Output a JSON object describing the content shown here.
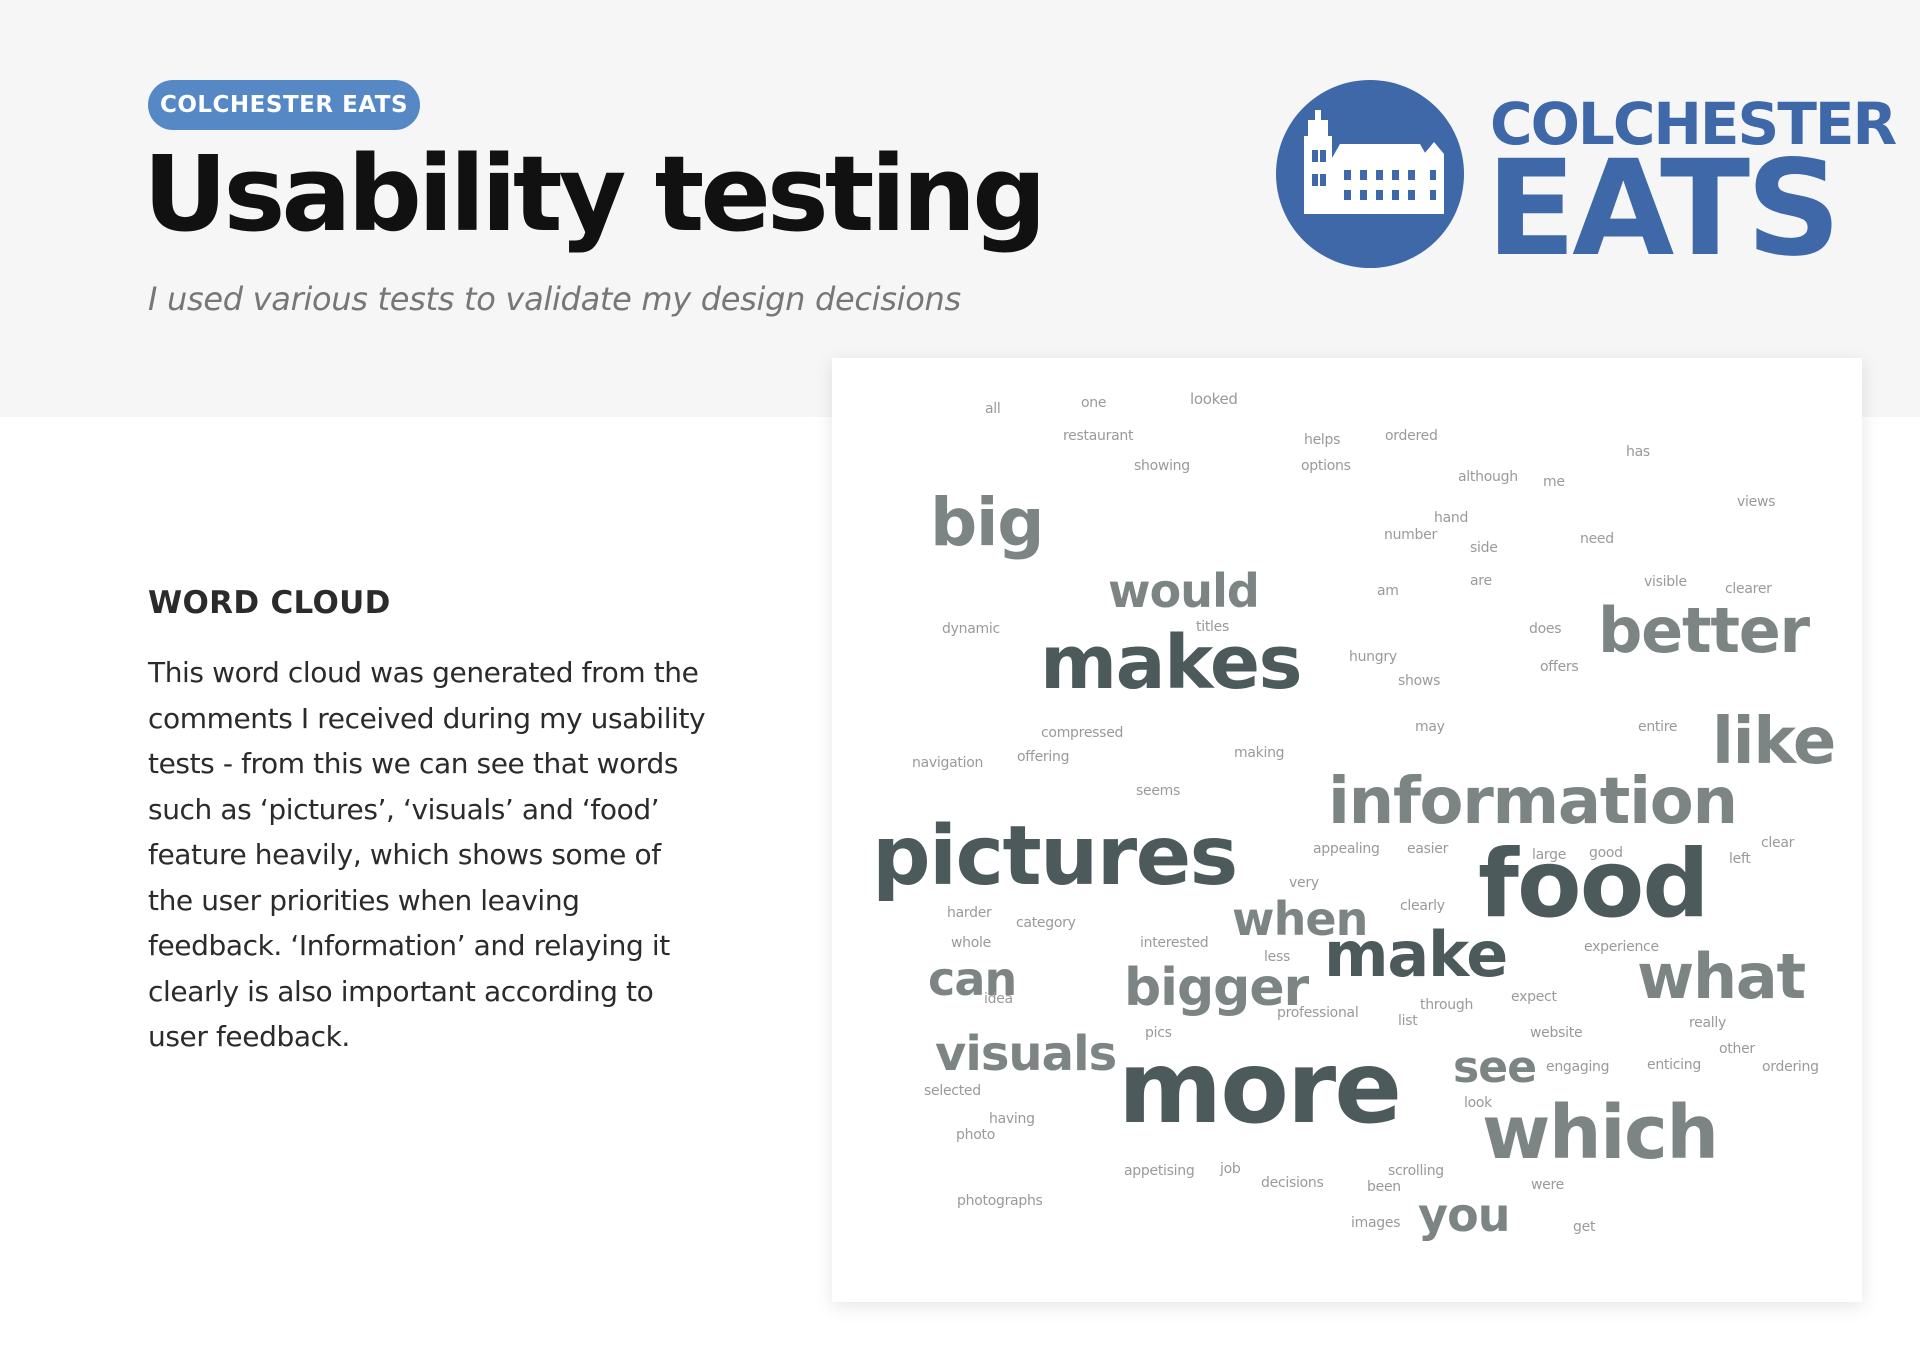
{
  "header": {
    "badge": "COLCHESTER EATS",
    "title": "Usability testing",
    "subtitle": "I used various tests to validate my design decisions"
  },
  "logo": {
    "line1": "COLCHESTER",
    "line2": "EATS",
    "brand_color": "#3f68a8"
  },
  "section": {
    "heading": "WORD CLOUD",
    "body": "This word cloud was generated from the comments I received during my usability tests - from this we can see that words such as ‘pictures’, ‘visuals’ and ‘food’ feature heavily, which shows some of the user priorities when leaving feedback. ‘Information’ and relaying it clearly is also important according to user feedback."
  },
  "colors": {
    "badge": "#5588c4",
    "header_band": "#f6f6f7",
    "word_dark": "#4d5a5c",
    "word_mid": "#7d8484",
    "word_light": "#9a9a9a"
  },
  "word_cloud": {
    "words": [
      "all",
      "one",
      "looked",
      "restaurant",
      "helps",
      "ordered",
      "showing",
      "options",
      "has",
      "although",
      "me",
      "views",
      "big",
      "hand",
      "number",
      "need",
      "side",
      "would",
      "am",
      "are",
      "visible",
      "clearer",
      "dynamic",
      "titles",
      "does",
      "better",
      "makes",
      "hungry",
      "offers",
      "shows",
      "may",
      "entire",
      "like",
      "compressed",
      "offering",
      "making",
      "navigation",
      "seems",
      "information",
      "pictures",
      "appealing",
      "easier",
      "large",
      "good",
      "clear",
      "left",
      "very",
      "food",
      "harder",
      "category",
      "clearly",
      "when",
      "whole",
      "interested",
      "experience",
      "less",
      "make",
      "can",
      "what",
      "idea",
      "through",
      "expect",
      "bigger",
      "professional",
      "list",
      "really",
      "pics",
      "website",
      "other",
      "visuals",
      "see",
      "engaging",
      "enticing",
      "ordering",
      "selected",
      "look",
      "more",
      "having",
      "photo",
      "which",
      "appetising",
      "job",
      "scrolling",
      "decisions",
      "been",
      "were",
      "photographs",
      "images",
      "you",
      "get"
    ]
  }
}
